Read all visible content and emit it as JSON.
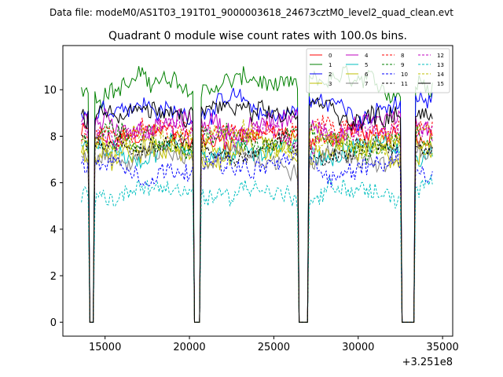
{
  "suptitle": "Data file: modeM0/AS1T03_191T01_9000003618_24673cztM0_level2_quad_clean.evt",
  "chart_data": {
    "type": "line",
    "title": "Quadrant 0 module wise count rates with 100.0s bins.",
    "xlabel": "",
    "ylabel": "",
    "x_offset_label": "+3.251e8",
    "xlim": [
      12500,
      35600
    ],
    "ylim": [
      -0.6,
      11.9
    ],
    "x_ticks": [
      15000,
      20000,
      25000,
      30000,
      35000
    ],
    "y_ticks": [
      0,
      2,
      4,
      6,
      8,
      10
    ],
    "grid": false,
    "legend_position": "top-right",
    "x_start": 13600,
    "x_end": 34400,
    "bin_seconds": 100,
    "gaps": [
      [
        14100,
        14300
      ],
      [
        20300,
        20600
      ],
      [
        26500,
        27000
      ],
      [
        32600,
        33300
      ]
    ],
    "series": [
      {
        "name": "0",
        "color": "#ff0000",
        "style": "solid",
        "mean": 8.0,
        "noise": 0.35
      },
      {
        "name": "1",
        "color": "#008000",
        "style": "solid",
        "mean": 10.2,
        "noise": 0.35
      },
      {
        "name": "2",
        "color": "#0000ff",
        "style": "solid",
        "mean": 9.2,
        "noise": 0.35
      },
      {
        "name": "3",
        "color": "#bfbf00",
        "style": "solid",
        "mean": 7.6,
        "noise": 0.35
      },
      {
        "name": "4",
        "color": "#bf00bf",
        "style": "solid",
        "mean": 8.5,
        "noise": 0.35
      },
      {
        "name": "5",
        "color": "#00bfbf",
        "style": "solid",
        "mean": 7.4,
        "noise": 0.35
      },
      {
        "name": "6",
        "color": "#bfbf00",
        "style": "solid",
        "mean": 7.2,
        "noise": 0.35
      },
      {
        "name": "7",
        "color": "#808080",
        "style": "solid",
        "mean": 7.0,
        "noise": 0.35
      },
      {
        "name": "8",
        "color": "#ff0000",
        "style": "dashed",
        "mean": 8.3,
        "noise": 0.35
      },
      {
        "name": "9",
        "color": "#008000",
        "style": "dashed",
        "mean": 7.8,
        "noise": 0.35
      },
      {
        "name": "10",
        "color": "#0000ff",
        "style": "dashed",
        "mean": 6.7,
        "noise": 0.35
      },
      {
        "name": "11",
        "color": "#000000",
        "style": "dashed",
        "mean": 7.5,
        "noise": 0.35
      },
      {
        "name": "12",
        "color": "#bf00bf",
        "style": "dashed",
        "mean": 8.1,
        "noise": 0.35
      },
      {
        "name": "13",
        "color": "#00bfbf",
        "style": "dashed",
        "mean": 5.6,
        "noise": 0.35
      },
      {
        "name": "14",
        "color": "#bfbf00",
        "style": "dashed",
        "mean": 7.9,
        "noise": 0.35
      },
      {
        "name": "15",
        "color": "#000000",
        "style": "solid",
        "mean": 9.0,
        "noise": 0.35
      }
    ]
  }
}
